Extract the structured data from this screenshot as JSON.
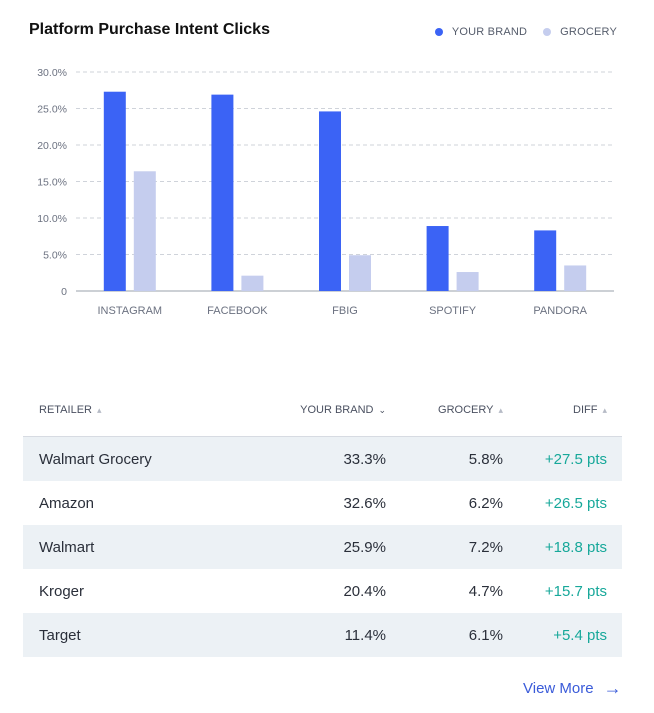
{
  "chart_data": {
    "type": "bar",
    "title": "Platform Purchase Intent Clicks",
    "categories": [
      "INSTAGRAM",
      "FACEBOOK",
      "FBIG",
      "SPOTIFY",
      "PANDORA"
    ],
    "series": [
      {
        "name": "YOUR BRAND",
        "color": "#3b63f5",
        "values": [
          27.3,
          26.9,
          24.6,
          8.9,
          8.3
        ]
      },
      {
        "name": "GROCERY",
        "color": "#c5cdee",
        "values": [
          16.4,
          2.1,
          4.9,
          2.6,
          3.5
        ]
      }
    ],
    "yticks": [
      "0",
      "5.0%",
      "10.0%",
      "15.0%",
      "20.0%",
      "25.0%",
      "30.0%"
    ],
    "ylim": [
      0,
      30
    ],
    "grid": true,
    "legend_position": "top-right"
  },
  "table": {
    "headers": {
      "retailer": "RETAILER",
      "your_brand": "YOUR BRAND",
      "grocery": "GROCERY",
      "diff": "DIFF"
    },
    "rows": [
      {
        "retailer": "Walmart Grocery",
        "your_brand": "33.3%",
        "grocery": "5.8%",
        "diff": "+27.5 pts"
      },
      {
        "retailer": "Amazon",
        "your_brand": "32.6%",
        "grocery": "6.2%",
        "diff": "+26.5 pts"
      },
      {
        "retailer": "Walmart",
        "your_brand": "25.9%",
        "grocery": "7.2%",
        "diff": "+18.8 pts"
      },
      {
        "retailer": "Kroger",
        "your_brand": "20.4%",
        "grocery": "4.7%",
        "diff": "+15.7 pts"
      },
      {
        "retailer": "Target",
        "your_brand": "11.4%",
        "grocery": "6.1%",
        "diff": "+5.4 pts"
      }
    ],
    "diff_color": "#17a89a"
  },
  "footer": {
    "view_more_label": "View More",
    "icon": "arrow-right-icon"
  }
}
